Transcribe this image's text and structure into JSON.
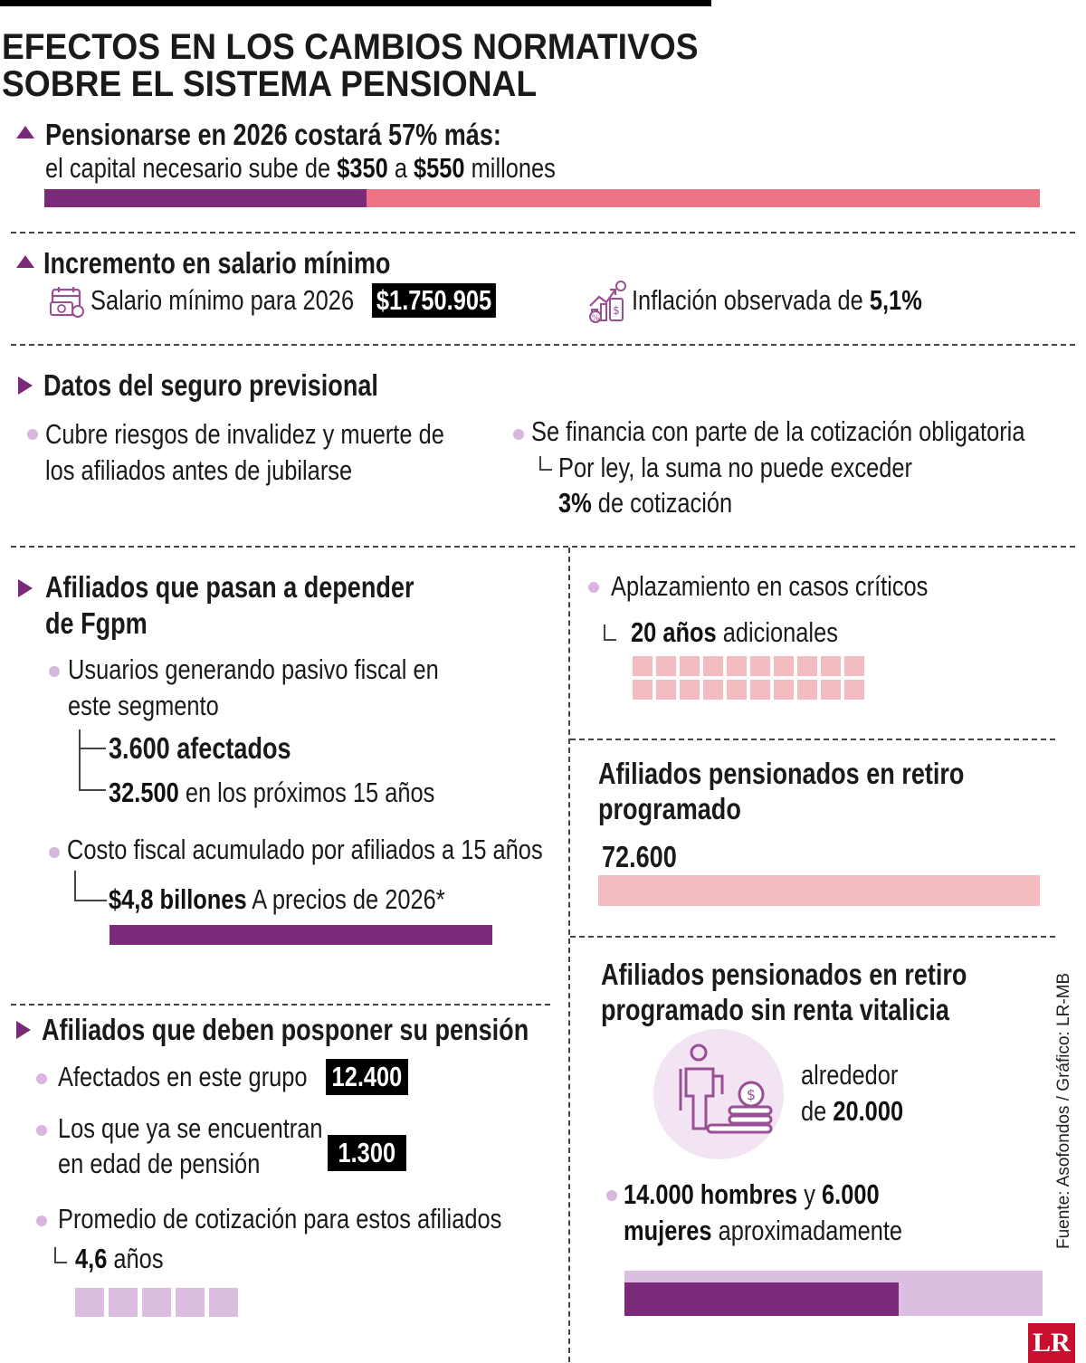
{
  "title": {
    "line1": "EFECTOS EN LOS CAMBIOS NORMATIVOS",
    "line2": "SOBRE EL SISTEMA PENSIONAL"
  },
  "section_cost": {
    "heading": "Pensionarse en 2026 costará 57% más:",
    "text_a": "el capital necesario sube de ",
    "value_from": "$350",
    "text_b": " a ",
    "value_to": "$550",
    "text_c": " millones",
    "bar_ratio_purple": 0.3238
  },
  "section_wage": {
    "heading": "Incremento en salario mínimo",
    "min_wage_label": "Salario mínimo para 2026",
    "min_wage_value": "$1.750.905",
    "inflation_label": "Inflación observada de ",
    "inflation_value": "5,1%"
  },
  "section_insurance": {
    "heading": "Datos del seguro previsional",
    "item1_line1": "Cubre riesgos de invalidez y muerte de",
    "item1_line2": "los afiliados antes de jubilarse",
    "item2_line1": "Se financia con parte de la cotización obligatoria",
    "item2_sub_line1": "Por ley, la suma no puede exceder",
    "item2_sub_value": "3%",
    "item2_sub_text": " de cotización"
  },
  "section_fgpm": {
    "heading_line1": "Afiliados que pasan a depender",
    "heading_line2": "de Fgpm",
    "item1_line1": "Usuarios generando pasivo fiscal en",
    "item1_line2": "este segmento",
    "affected_value": "3.600 afectados",
    "future_value": "32.500",
    "future_text": " en los próximos 15 años",
    "item2_line1": "Costo fiscal acumulado por afiliados a 15 años",
    "cost_value": "$4,8 billones",
    "cost_text": " A precios de 2026*"
  },
  "section_postpone": {
    "heading": "Afiliados que deben posponer su pensión",
    "item1_label": "Afectados en este grupo",
    "item1_value": "12.400",
    "item2_line1": "Los que ya se encuentran",
    "item2_line2": "en edad de pensión",
    "item2_value": "1.300",
    "item3_line1": "Promedio de cotización para estos afiliados",
    "item3_value": "4,6",
    "item3_text": " años",
    "squares_count": 5
  },
  "section_defer": {
    "item_label": "Aplazamiento en casos críticos",
    "value": "20 años",
    "text": " adicionales",
    "squares_count": 20
  },
  "section_programmed": {
    "heading_line1": "Afiliados pensionados en retiro",
    "heading_line2": "programado",
    "value": "72.600"
  },
  "section_no_annuity": {
    "heading_line1": "Afiliados pensionados en retiro",
    "heading_line2": "programado sin renta vitalicia",
    "approx_line1": "alrededor",
    "approx_prefix": "de ",
    "approx_value": "20.000",
    "men_value": "14.000 hombres",
    "men_text": " y ",
    "women_value1": "6.000",
    "women_value2": "mujeres",
    "women_text": " aproximadamente",
    "men_ratio": 0.7
  },
  "source": "Fuente: Asofondos  / Gráfico: LR-MB",
  "logo": "LR",
  "colors": {
    "purple": "#7a2a78",
    "pink": "#ec7385",
    "light_pink": "#f3bcc0",
    "lavender": "#dcbfe0",
    "dot": "#d9b6de"
  },
  "icons": [
    "calendar-money-icon",
    "inflation-chart-icon",
    "person-coins-icon"
  ]
}
